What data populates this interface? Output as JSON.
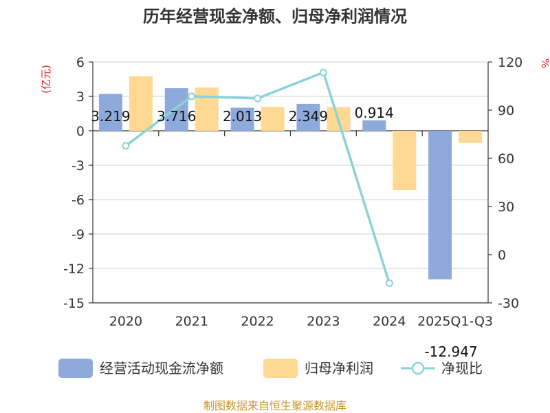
{
  "chart_data": {
    "type": "bar+line",
    "title": "历年经营现金净额、归母净利润情况",
    "left_unit": "(亿元)",
    "right_unit": "%",
    "categories": [
      "2020",
      "2021",
      "2022",
      "2023",
      "2024",
      "2025Q1-Q3"
    ],
    "left_axis": {
      "min": -15,
      "max": 6,
      "ticks": [
        6,
        3,
        0,
        -3,
        -6,
        -9,
        -12,
        -15
      ]
    },
    "right_axis": {
      "min": -30,
      "max": 120,
      "ticks": [
        120,
        90,
        60,
        30,
        0,
        -30
      ]
    },
    "series": [
      {
        "name": "经营活动现金流净额",
        "type": "bar",
        "axis": "left",
        "color": "#8eaadb",
        "values": [
          3.219,
          3.716,
          2.013,
          2.349,
          0.914,
          -12.947
        ],
        "labels": [
          "3.219",
          "3.716",
          "2.013",
          "2.349",
          "0.914",
          "-12.947"
        ]
      },
      {
        "name": "归母净利润",
        "type": "bar",
        "axis": "left",
        "color": "#ffd894",
        "values": [
          4.75,
          3.77,
          2.07,
          2.07,
          -5.17,
          -1.07
        ]
      },
      {
        "name": "净现比",
        "type": "line",
        "axis": "right",
        "color": "#8ad3d8",
        "values": [
          67.8,
          98.6,
          97.3,
          113.5,
          -17.7,
          null
        ]
      }
    ],
    "source": "制图数据来自恒生聚源数据库"
  }
}
